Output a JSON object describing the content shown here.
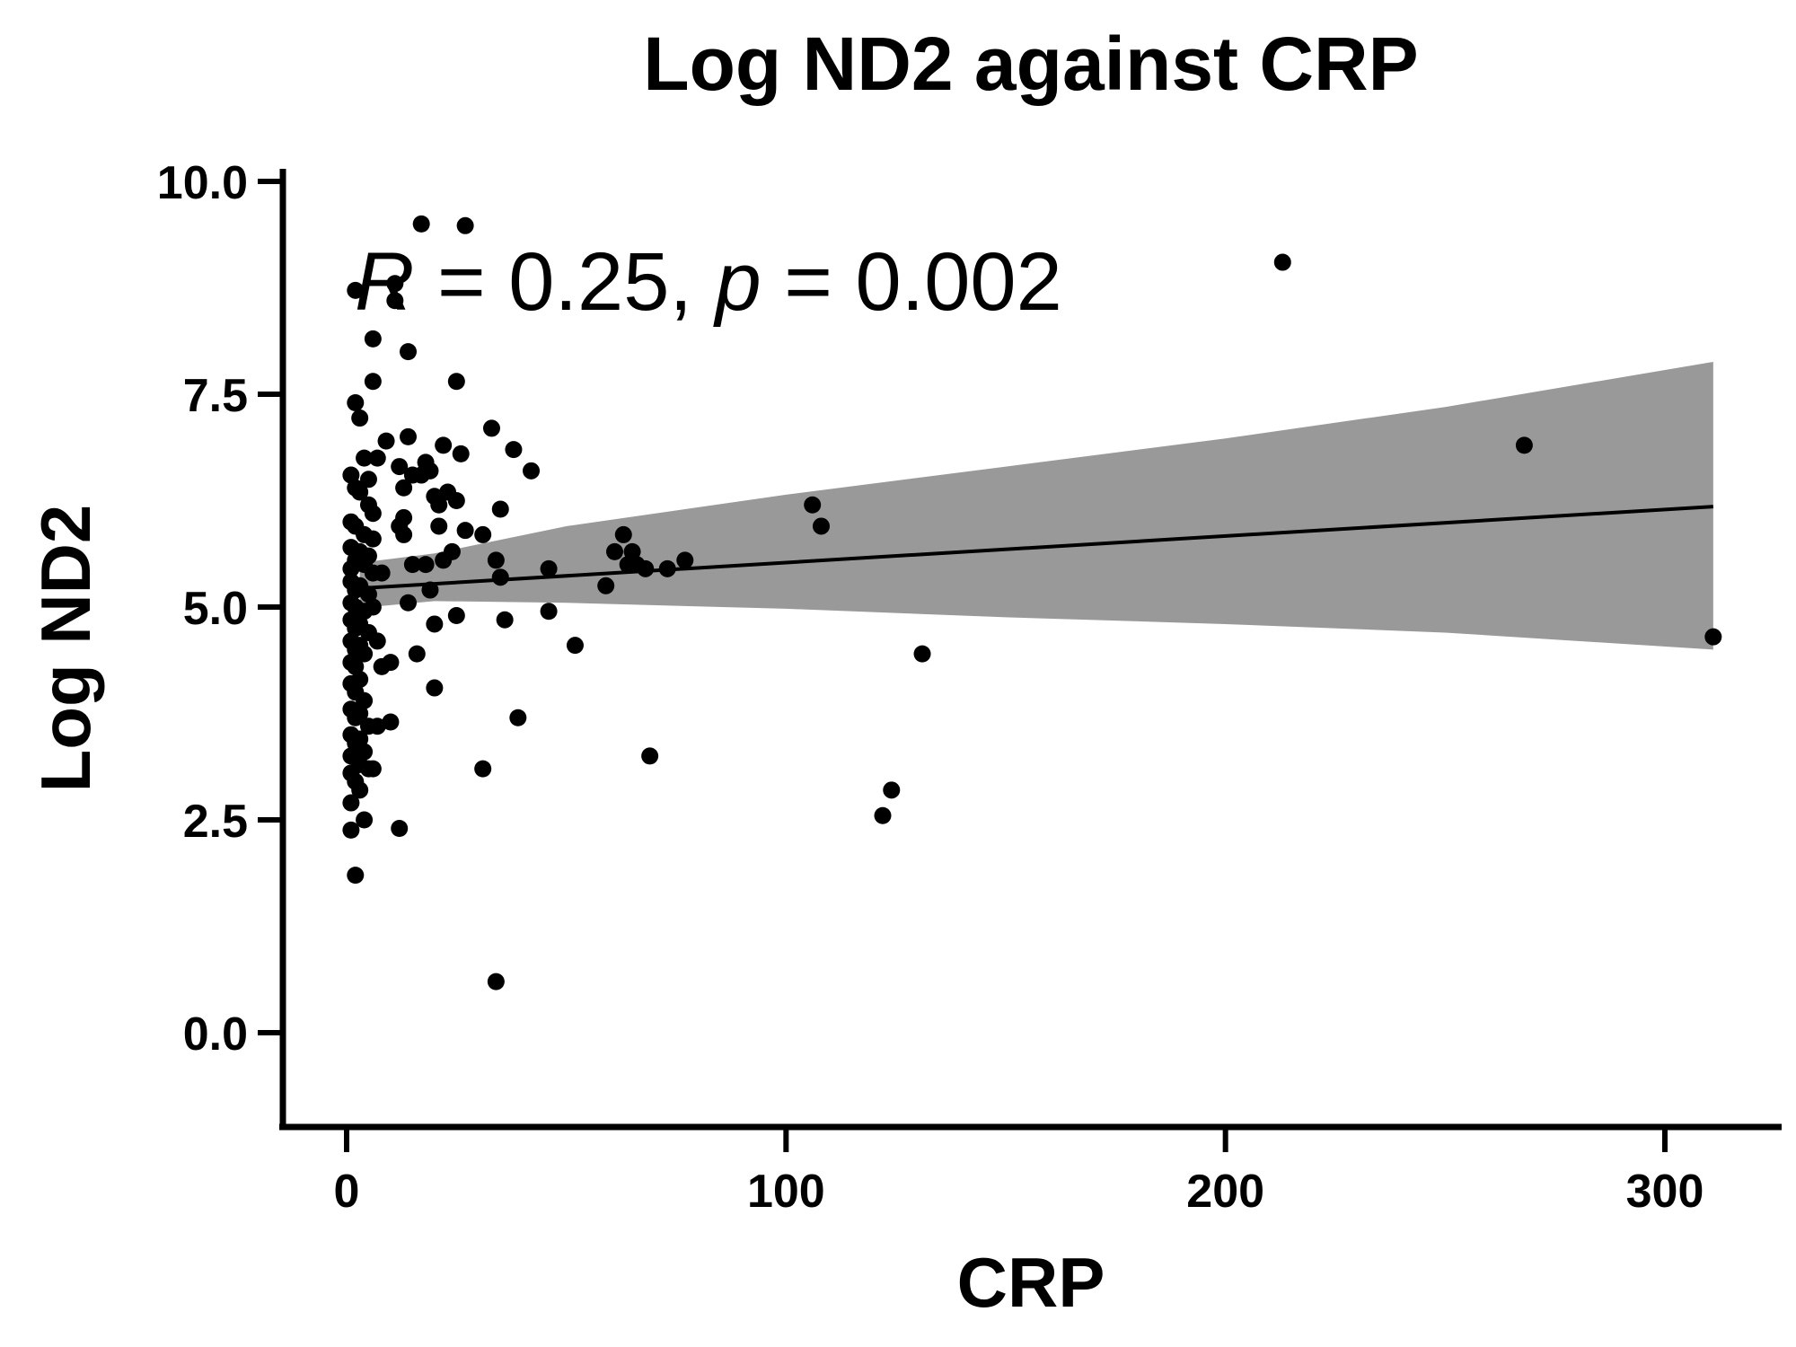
{
  "chart_data": {
    "type": "scatter",
    "title": "Log ND2 against CRP",
    "xlabel": "CRP",
    "ylabel": "Log ND2",
    "xlim": [
      -15,
      330
    ],
    "ylim": [
      -1.1,
      10.2
    ],
    "xticks": [
      0,
      100,
      200,
      300
    ],
    "xtick_labels": [
      "0",
      "100",
      "200",
      "300"
    ],
    "yticks": [
      0.0,
      2.5,
      5.0,
      7.5,
      10.0
    ],
    "ytick_labels": [
      "0.0",
      "2.5",
      "5.0",
      "7.5",
      "10.0"
    ],
    "grid": false,
    "annotation": {
      "r_symbol": "R",
      "r_text": " = 0.25, ",
      "p_symbol": "p",
      "p_text": " = 0.002"
    },
    "regression": {
      "x": [
        3,
        311
      ],
      "y": [
        5.22,
        6.18
      ]
    },
    "confidence_band": {
      "x": [
        3,
        20,
        50,
        100,
        150,
        200,
        250,
        311
      ],
      "upper": [
        5.52,
        5.63,
        5.95,
        6.32,
        6.65,
        6.98,
        7.35,
        7.88
      ],
      "lower": [
        4.99,
        5.07,
        5.05,
        4.98,
        4.88,
        4.8,
        4.7,
        4.5
      ]
    },
    "series": [
      {
        "points": [
          [
            2,
            8.72
          ],
          [
            2,
            7.4
          ],
          [
            3,
            7.22
          ],
          [
            4,
            6.75
          ],
          [
            1,
            6.55
          ],
          [
            2,
            6.4
          ],
          [
            3,
            6.35
          ],
          [
            5,
            6.2
          ],
          [
            1,
            6.0
          ],
          [
            2,
            5.95
          ],
          [
            4,
            5.85
          ],
          [
            6,
            5.8
          ],
          [
            1,
            5.7
          ],
          [
            3,
            5.65
          ],
          [
            5,
            5.6
          ],
          [
            2,
            5.55
          ],
          [
            4,
            5.5
          ],
          [
            1,
            5.45
          ],
          [
            6,
            5.4
          ],
          [
            1,
            5.3
          ],
          [
            3,
            5.25
          ],
          [
            2,
            5.2
          ],
          [
            5,
            5.15
          ],
          [
            1,
            5.05
          ],
          [
            2,
            5.0
          ],
          [
            4,
            4.95
          ],
          [
            1,
            4.85
          ],
          [
            3,
            4.8
          ],
          [
            2,
            4.75
          ],
          [
            5,
            4.7
          ],
          [
            1,
            4.6
          ],
          [
            3,
            4.55
          ],
          [
            2,
            4.5
          ],
          [
            4,
            4.45
          ],
          [
            1,
            4.35
          ],
          [
            2,
            4.3
          ],
          [
            3,
            4.15
          ],
          [
            1,
            4.1
          ],
          [
            2,
            4.0
          ],
          [
            4,
            3.9
          ],
          [
            1,
            3.8
          ],
          [
            3,
            3.75
          ],
          [
            2,
            3.7
          ],
          [
            5,
            3.6
          ],
          [
            1,
            3.5
          ],
          [
            3,
            3.45
          ],
          [
            2,
            3.4
          ],
          [
            4,
            3.3
          ],
          [
            1,
            3.25
          ],
          [
            3,
            3.15
          ],
          [
            5,
            3.1
          ],
          [
            1,
            3.05
          ],
          [
            2,
            2.95
          ],
          [
            3,
            2.85
          ],
          [
            1,
            2.7
          ],
          [
            4,
            2.5
          ],
          [
            1,
            2.38
          ],
          [
            2,
            1.85
          ],
          [
            6,
            6.1
          ],
          [
            5,
            6.5
          ],
          [
            6,
            5.0
          ],
          [
            7,
            4.6
          ],
          [
            7,
            3.6
          ],
          [
            6,
            3.1
          ],
          [
            6,
            7.65
          ],
          [
            6,
            8.15
          ],
          [
            7,
            6.75
          ],
          [
            8,
            5.4
          ],
          [
            9,
            6.95
          ],
          [
            8,
            4.3
          ],
          [
            10,
            4.35
          ],
          [
            10,
            3.65
          ],
          [
            11,
            8.6
          ],
          [
            11,
            8.8
          ],
          [
            12,
            6.65
          ],
          [
            12,
            5.95
          ],
          [
            13,
            6.4
          ],
          [
            13,
            6.05
          ],
          [
            13,
            5.85
          ],
          [
            14,
            8.0
          ],
          [
            14,
            7.0
          ],
          [
            14,
            5.05
          ],
          [
            15,
            6.55
          ],
          [
            15,
            5.5
          ],
          [
            16,
            4.45
          ],
          [
            17,
            9.5
          ],
          [
            17,
            6.55
          ],
          [
            18,
            6.7
          ],
          [
            18,
            5.5
          ],
          [
            19,
            6.6
          ],
          [
            19,
            5.2
          ],
          [
            20,
            6.3
          ],
          [
            20,
            4.8
          ],
          [
            20,
            4.05
          ],
          [
            21,
            6.2
          ],
          [
            21,
            5.95
          ],
          [
            22,
            6.9
          ],
          [
            22,
            5.55
          ],
          [
            23,
            6.35
          ],
          [
            24,
            5.65
          ],
          [
            25,
            7.65
          ],
          [
            25,
            6.25
          ],
          [
            25,
            4.9
          ],
          [
            26,
            6.8
          ],
          [
            27,
            5.9
          ],
          [
            27,
            9.48
          ],
          [
            31,
            5.85
          ],
          [
            31,
            3.1
          ],
          [
            33,
            7.1
          ],
          [
            34,
            5.55
          ],
          [
            35,
            6.15
          ],
          [
            35,
            5.35
          ],
          [
            36,
            4.85
          ],
          [
            38,
            6.85
          ],
          [
            39,
            3.7
          ],
          [
            42,
            6.6
          ],
          [
            46,
            5.45
          ],
          [
            46,
            4.95
          ],
          [
            52,
            4.55
          ],
          [
            59,
            5.25
          ],
          [
            61,
            5.65
          ],
          [
            63,
            5.85
          ],
          [
            64,
            5.5
          ],
          [
            65,
            5.65
          ],
          [
            66,
            5.5
          ],
          [
            68,
            5.45
          ],
          [
            69,
            3.25
          ],
          [
            73,
            5.45
          ],
          [
            77,
            5.55
          ],
          [
            12,
            2.4
          ],
          [
            34,
            0.6
          ],
          [
            106,
            6.2
          ],
          [
            108,
            5.95
          ],
          [
            122,
            2.55
          ],
          [
            124,
            2.85
          ],
          [
            131,
            4.45
          ],
          [
            213,
            9.05
          ],
          [
            268,
            6.9
          ],
          [
            311,
            4.65
          ]
        ]
      }
    ]
  }
}
